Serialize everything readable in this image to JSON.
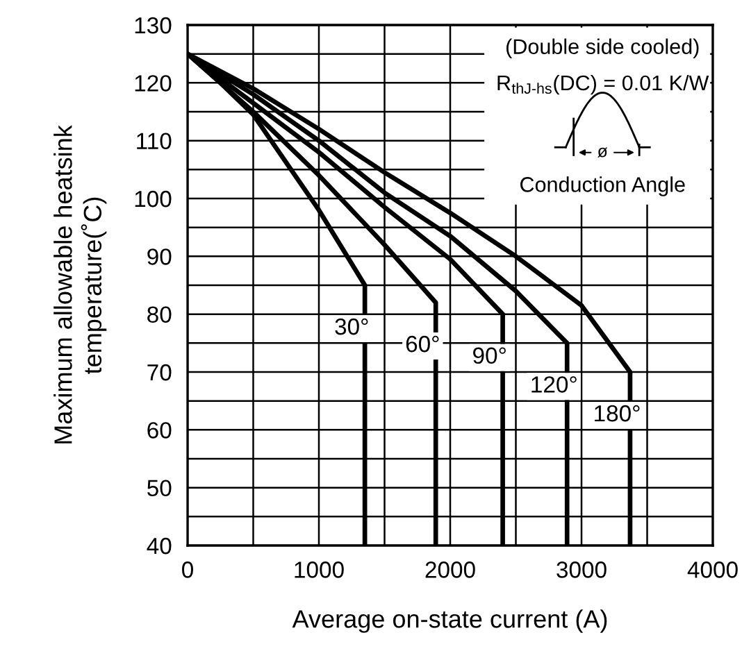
{
  "chart_data": {
    "type": "line",
    "xlabel": "Average on-state current (A)",
    "ylabel": "Maximum allowable heatsink\ntemperature(˚C)",
    "xlim": [
      0,
      4000
    ],
    "ylim": [
      40,
      130
    ],
    "xticks": [
      0,
      {
        "value": 500,
        "label": null
      },
      1000,
      {
        "value": 1500,
        "label": null
      },
      2000,
      {
        "value": 2500,
        "label": null
      },
      3000,
      {
        "value": 3500,
        "label": null
      },
      4000
    ],
    "yticks": [
      40,
      {
        "value": 45,
        "label": null
      },
      50,
      {
        "value": 55,
        "label": null
      },
      60,
      {
        "value": 65,
        "label": null
      },
      70,
      {
        "value": 75,
        "label": null
      },
      80,
      {
        "value": 85,
        "label": null
      },
      90,
      {
        "value": 95,
        "label": null
      },
      100,
      {
        "value": 105,
        "label": null
      },
      110,
      {
        "value": 115,
        "label": null
      },
      120,
      {
        "value": 125,
        "label": null
      },
      130
    ],
    "grid": true,
    "marker": "none",
    "line_style": "solid",
    "series": [
      {
        "name": "30°",
        "color": "#000000",
        "x": [
          0,
          250,
          500,
          1000,
          1350,
          1350
        ],
        "values": [
          125,
          120,
          114.5,
          98,
          85,
          40
        ]
      },
      {
        "name": "60°",
        "color": "#000000",
        "x": [
          0,
          500,
          1000,
          1500,
          1890,
          1890
        ],
        "values": [
          125,
          115,
          104,
          92,
          82,
          40
        ]
      },
      {
        "name": "90°",
        "color": "#000000",
        "x": [
          0,
          500,
          1000,
          1500,
          2000,
          2400,
          2400
        ],
        "values": [
          125,
          116.5,
          108,
          98.5,
          89.5,
          80,
          40
        ]
      },
      {
        "name": "120°",
        "color": "#000000",
        "x": [
          0,
          500,
          1000,
          1500,
          2000,
          2500,
          2890,
          2890
        ],
        "values": [
          125,
          118,
          110,
          101,
          93.5,
          84,
          75,
          40
        ]
      },
      {
        "name": "180°",
        "color": "#000000",
        "x": [
          0,
          500,
          1000,
          1500,
          2000,
          2500,
          3000,
          3370,
          3370
        ],
        "values": [
          125,
          119,
          112,
          104.5,
          97.5,
          90,
          81.5,
          70,
          40
        ]
      }
    ],
    "annotations": [
      "(Double side cooled)",
      "R$_{thJ-hs}$(DC) = 0.01 K/W",
      "ø",
      "Conduction Angle"
    ]
  }
}
